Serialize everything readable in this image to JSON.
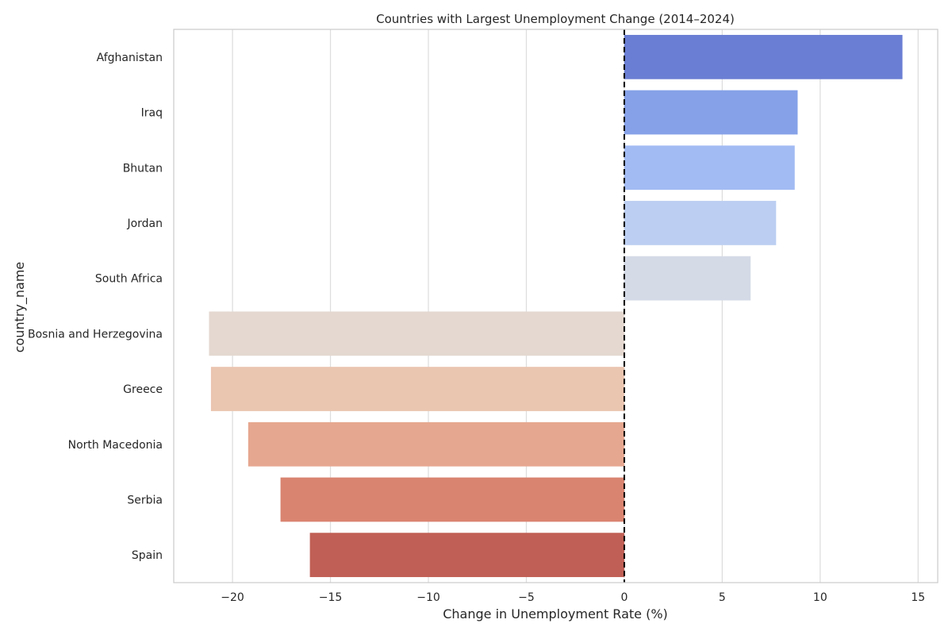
{
  "chart_data": {
    "type": "bar",
    "orientation": "horizontal",
    "title": "Countries with Largest Unemployment Change (2014–2024)",
    "xlabel": "Change in Unemployment Rate (%)",
    "ylabel": "country_name",
    "xlim": [
      -23,
      16
    ],
    "xticks": [
      -20,
      -15,
      -10,
      -5,
      0,
      5,
      10,
      15
    ],
    "xtick_labels": [
      "−20",
      "−15",
      "−10",
      "−5",
      "0",
      "5",
      "10",
      "15"
    ],
    "grid": "vertical",
    "reference_line": 0,
    "categories": [
      "Afghanistan",
      "Iraq",
      "Bhutan",
      "Jordan",
      "South Africa",
      "Bosnia and Herzegovina",
      "Greece",
      "North Macedonia",
      "Serbia",
      "Spain"
    ],
    "values": [
      14.2,
      8.85,
      8.7,
      7.75,
      6.45,
      -21.2,
      -21.1,
      -19.2,
      -17.55,
      -16.05
    ],
    "colors": [
      "#6a7ed3",
      "#86a1e8",
      "#a2bbf3",
      "#bccff2",
      "#d4dae6",
      "#e4d8d0",
      "#eac5b0",
      "#e6a790",
      "#d98470",
      "#c05f55"
    ]
  }
}
